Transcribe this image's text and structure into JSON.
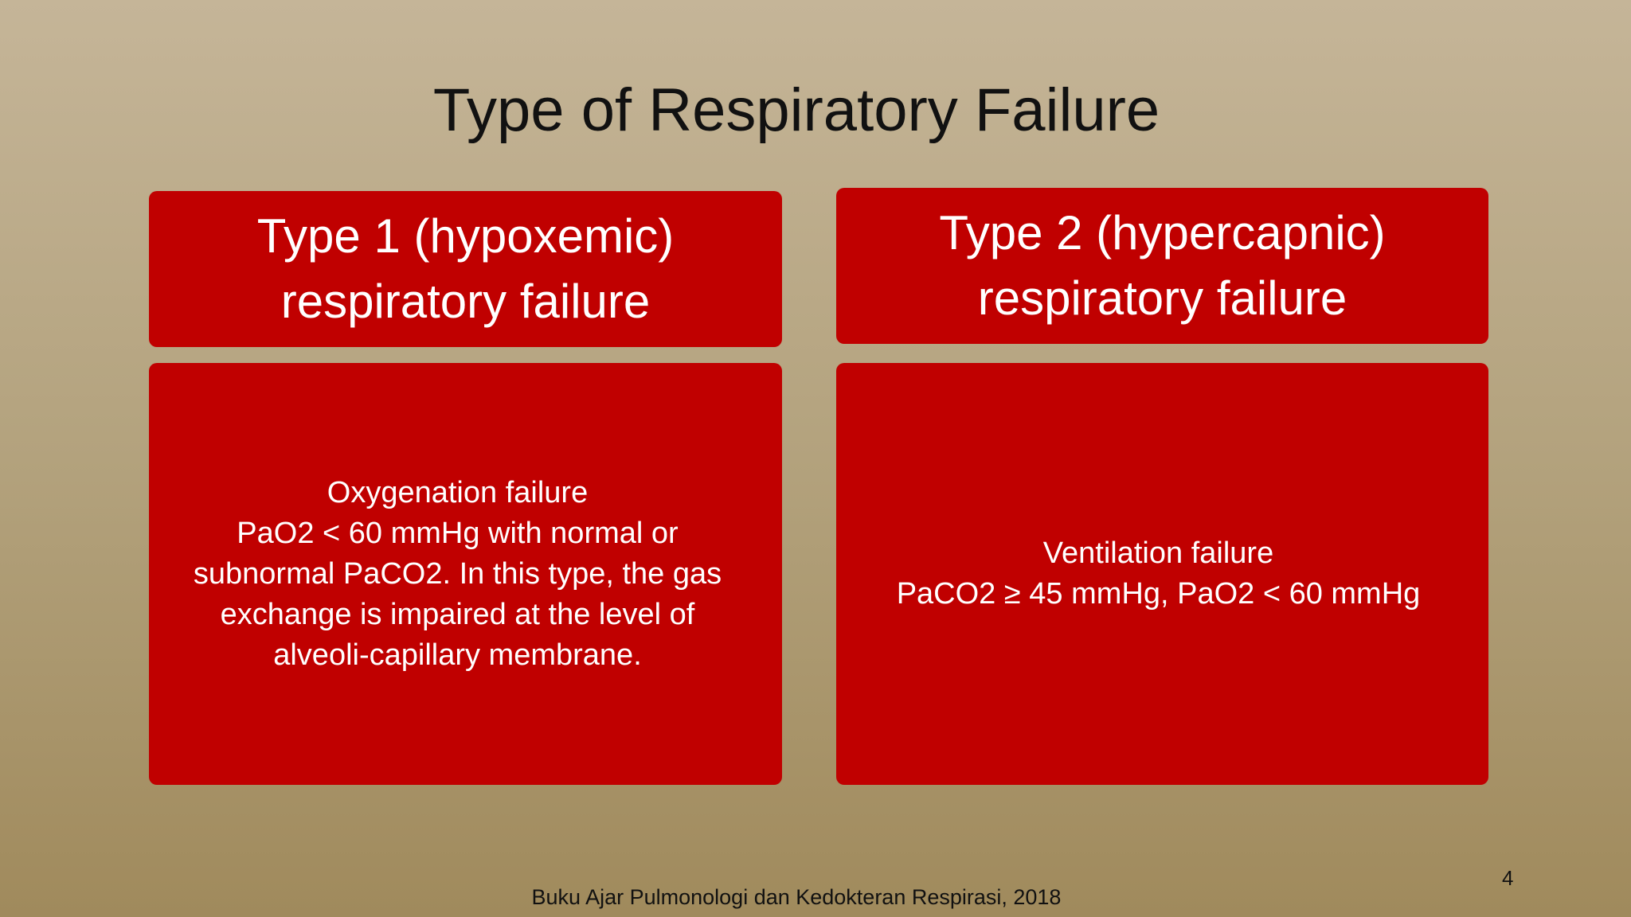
{
  "slide": {
    "title": "Type of Respiratory Failure",
    "colors": {
      "box": "#c00000",
      "background_top": "#c5b598",
      "background_bottom": "#a08a5c"
    },
    "columns": [
      {
        "header_lines": [
          "Type 1 (hypoxemic)",
          "respiratory failure"
        ],
        "body_lines": [
          "Oxygenation failure",
          "PaO2 < 60 mmHg with normal or",
          "subnormal PaCO2. In this type, the gas",
          "exchange is impaired at the level of",
          "alveoli-capillary membrane."
        ]
      },
      {
        "header_lines": [
          "Type 2 (hypercapnic)",
          "respiratory failure"
        ],
        "body_lines": [
          "Ventilation failure",
          "PaCO2 ≥ 45 mmHg, PaO2 < 60 mmHg"
        ]
      }
    ],
    "footer": "Buku Ajar Pulmonologi dan Kedokteran Respirasi, 2018",
    "page_number": "4"
  }
}
